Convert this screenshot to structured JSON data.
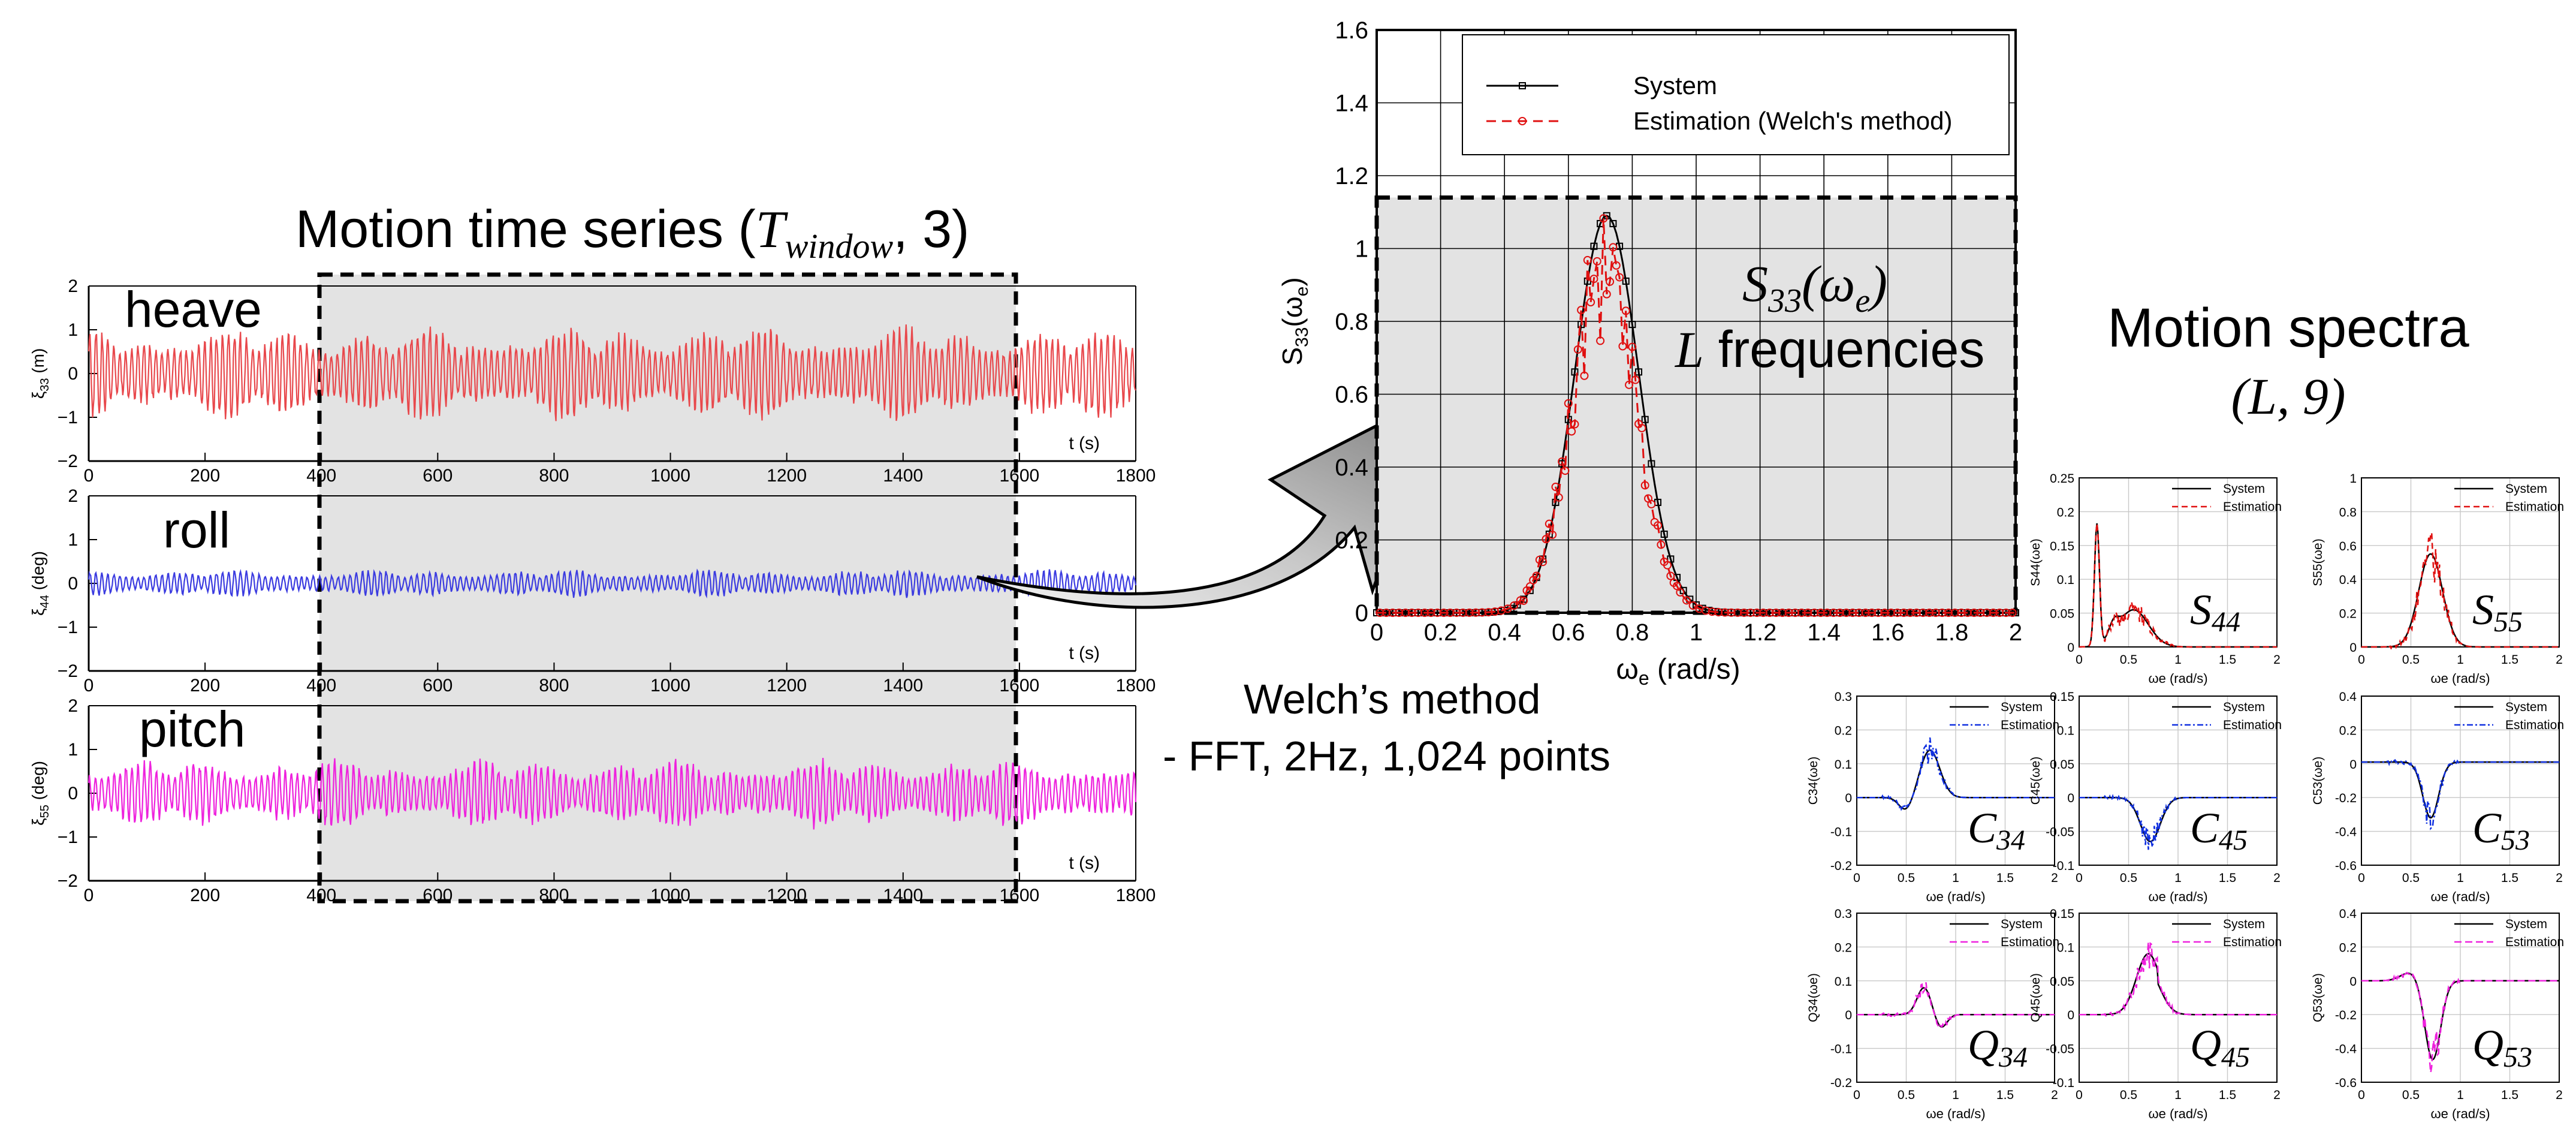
{
  "time_series": {
    "title": "Motion time series (T_window, 3)",
    "title_parts": {
      "prefix": "Motion time series (",
      "var": "T",
      "sub": "window",
      "suffix": ", 3)"
    },
    "x_axis_label": "t (s)",
    "x_ticks": [
      0,
      200,
      400,
      600,
      800,
      1000,
      1200,
      1400,
      1600,
      1800
    ],
    "window_range": [
      400,
      1600
    ],
    "panels": [
      {
        "name": "heave",
        "ylabel": "ξ33 (m)",
        "ylabel_main": "ξ",
        "ylabel_sub": "33",
        "ylabel_unit": " (m)",
        "y_ticks": [
          2,
          1,
          0,
          -1,
          -2
        ],
        "color": "#e8484c",
        "amp": 0.75,
        "seed": 11
      },
      {
        "name": "roll",
        "ylabel": "ξ44 (deg)",
        "ylabel_main": "ξ",
        "ylabel_sub": "44",
        "ylabel_unit": " (deg)",
        "y_ticks": [
          2,
          1,
          0,
          -1,
          -2
        ],
        "color": "#3b3be0",
        "amp": 0.22,
        "seed": 23
      },
      {
        "name": "pitch",
        "ylabel": "ξ55 (deg)",
        "ylabel_main": "ξ",
        "ylabel_sub": "55",
        "ylabel_unit": " (deg)",
        "y_ticks": [
          2,
          1,
          0,
          -1,
          -2
        ],
        "color": "#ee22dd",
        "amp": 0.55,
        "seed": 37
      }
    ]
  },
  "welch": {
    "line1": "Welch’s method",
    "line2": "- FFT, 2Hz, 1,024 points"
  },
  "big_chart": {
    "type": "line",
    "xlabel": "ωe (rad/s)",
    "xlabel_main": "ω",
    "xlabel_sub": "e",
    "xlabel_unit": " (rad/s)",
    "ylabel": "S33(ωe)",
    "xlim": [
      0,
      2
    ],
    "ylim": [
      0,
      1.6
    ],
    "x_ticks": [
      "0",
      "0.2",
      "0.4",
      "0.6",
      "0.8",
      "1",
      "1.2",
      "1.4",
      "1.6",
      "1.8",
      "2"
    ],
    "y_ticks": [
      "0",
      "0.2",
      "0.4",
      "0.6",
      "0.8",
      "1",
      "1.2",
      "1.4",
      "1.6"
    ],
    "legend": [
      "System",
      "Estimation (Welch's method)"
    ],
    "annotation_line1": "S33(ωe)",
    "annotation_line2": "L frequencies",
    "series": [
      {
        "name": "System",
        "color": "#000000",
        "peak_x": 0.72,
        "peak_y": 1.09,
        "width": 0.1
      },
      {
        "name": "Estimation (Welch's method)",
        "color": "#e01010",
        "peak_x": 0.71,
        "peak_y": 1.0,
        "width": 0.1
      }
    ]
  },
  "spectra": {
    "title_line1": "Motion spectra",
    "title_line2": "(L, 9)",
    "x_ticks": [
      "0",
      "0.5",
      "1",
      "1.5",
      "2"
    ],
    "xlabel": "ωe (rad/s)",
    "panels": [
      {
        "id": "S44",
        "ylabel": "S44(ωe)",
        "label_main": "S",
        "label_sub": "44",
        "y_ticks": [
          "0.25",
          "0.2",
          "0.15",
          "0.1",
          "0.05",
          "0"
        ],
        "ylim": [
          0,
          0.25
        ],
        "legend": [
          "System",
          "Estimation"
        ],
        "est_color": "#e01010",
        "est_dash": "10,6",
        "kind": "s44"
      },
      {
        "id": "S55",
        "ylabel": "S55(ωe)",
        "label_main": "S",
        "label_sub": "55",
        "y_ticks": [
          "1",
          "0.8",
          "0.6",
          "0.4",
          "0.2",
          "0"
        ],
        "ylim": [
          0,
          1
        ],
        "legend": [
          "System",
          "Estimation"
        ],
        "est_color": "#e01010",
        "est_dash": "10,6",
        "kind": "s55"
      },
      {
        "id": "C34",
        "ylabel": "C34(ωe)",
        "label_main": "C",
        "label_sub": "34",
        "y_ticks": [
          "0.3",
          "0.2",
          "0.1",
          "0",
          "-0.1",
          "-0.2"
        ],
        "ylim": [
          -0.2,
          0.3
        ],
        "legend": [
          "System",
          "Estimation"
        ],
        "est_color": "#1030e0",
        "est_dash": "10,4,3,4",
        "kind": "c34"
      },
      {
        "id": "C45",
        "ylabel": "C45(ωe)",
        "label_main": "C",
        "label_sub": "45",
        "y_ticks": [
          "0.15",
          "0.1",
          "0.05",
          "0",
          "-0.05",
          "-0.1"
        ],
        "ylim": [
          -0.1,
          0.15
        ],
        "legend": [
          "System",
          "Estimation"
        ],
        "est_color": "#1030e0",
        "est_dash": "10,4,3,4",
        "kind": "c45"
      },
      {
        "id": "C53",
        "ylabel": "C53(ωe)",
        "label_main": "C",
        "label_sub": "53",
        "y_ticks": [
          "0.4",
          "0.2",
          "0",
          "-0.2",
          "-0.4",
          "-0.6"
        ],
        "ylim": [
          -0.6,
          0.4
        ],
        "legend": [
          "System",
          "Estimation"
        ],
        "est_color": "#1030e0",
        "est_dash": "10,4,3,4",
        "kind": "c53"
      },
      {
        "id": "Q34",
        "ylabel": "Q34(ωe)",
        "label_main": "Q",
        "label_sub": "34",
        "y_ticks": [
          "0.3",
          "0.2",
          "0.1",
          "0",
          "-0.1",
          "-0.2"
        ],
        "ylim": [
          -0.2,
          0.3
        ],
        "legend": [
          "System",
          "Estimation"
        ],
        "est_color": "#ee22dd",
        "est_dash": "12,6",
        "kind": "q34"
      },
      {
        "id": "Q45",
        "ylabel": "Q45(ωe)",
        "label_main": "Q",
        "label_sub": "45",
        "y_ticks": [
          "0.15",
          "0.1",
          "0.05",
          "0",
          "-0.05",
          "-0.1"
        ],
        "ylim": [
          -0.1,
          0.15
        ],
        "legend": [
          "System",
          "Estimation"
        ],
        "est_color": "#ee22dd",
        "est_dash": "12,6",
        "kind": "q45"
      },
      {
        "id": "Q53",
        "ylabel": "Q53(ωe)",
        "label_main": "Q",
        "label_sub": "53",
        "y_ticks": [
          "0.4",
          "0.2",
          "0",
          "-0.2",
          "-0.4",
          "-0.6"
        ],
        "ylim": [
          -0.6,
          0.4
        ],
        "legend": [
          "System",
          "Estimation"
        ],
        "est_color": "#ee22dd",
        "est_dash": "12,6",
        "kind": "q53"
      }
    ]
  }
}
